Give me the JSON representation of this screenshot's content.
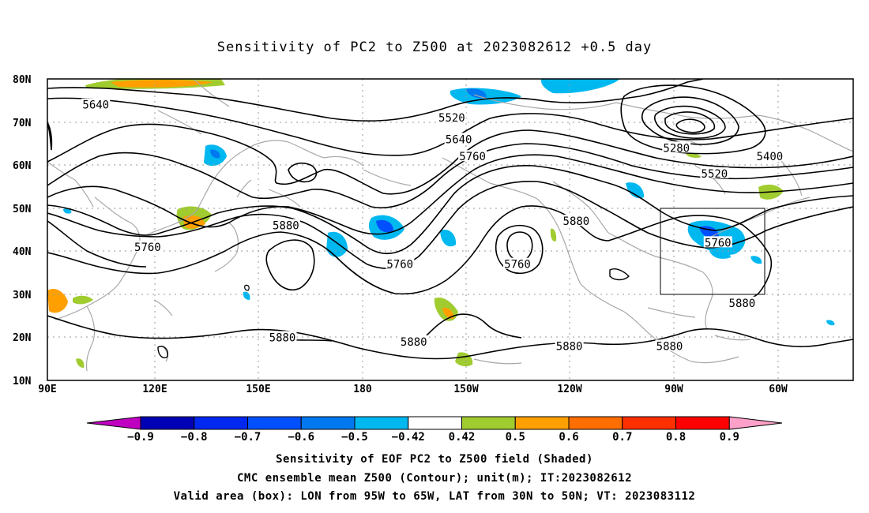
{
  "title": "Sensitivity of PC2 to Z500 at 2023082612 +0.5 day",
  "captions": [
    "Sensitivity of EOF PC2 to Z500 field (Shaded)",
    "CMC ensemble mean Z500 (Contour); unit(m); IT:2023082612",
    "Valid area (box): LON from 95W to 65W, LAT from 30N to 50N; VT: 2023083112"
  ],
  "axes": {
    "lon_ticks": [
      "90E",
      "120E",
      "150E",
      "180",
      "150W",
      "120W",
      "90W",
      "60W"
    ],
    "lat_ticks": [
      "80N",
      "70N",
      "60N",
      "50N",
      "40N",
      "30N",
      "20N",
      "10N"
    ]
  },
  "contour_labels": [
    {
      "text": "5640",
      "lon": 104,
      "lat": 74
    },
    {
      "text": "5520",
      "lon": 207,
      "lat": 71
    },
    {
      "text": "5640",
      "lon": 209,
      "lat": 66
    },
    {
      "text": "5760",
      "lon": 213,
      "lat": 62
    },
    {
      "text": "5280",
      "lon": 272,
      "lat": 64
    },
    {
      "text": "5400",
      "lon": 299,
      "lat": 62
    },
    {
      "text": "5520",
      "lon": 283,
      "lat": 58
    },
    {
      "text": "5880",
      "lon": 243,
      "lat": 47
    },
    {
      "text": "5760",
      "lon": 119,
      "lat": 41
    },
    {
      "text": "5880",
      "lon": 159,
      "lat": 46
    },
    {
      "text": "5760",
      "lon": 192,
      "lat": 37
    },
    {
      "text": "5760",
      "lon": 226,
      "lat": 37
    },
    {
      "text": "5760",
      "lon": 284,
      "lat": 42
    },
    {
      "text": "5880",
      "lon": 291,
      "lat": 28
    },
    {
      "text": "5880",
      "lon": 158,
      "lat": 20
    },
    {
      "text": "5880",
      "lon": 196,
      "lat": 19
    },
    {
      "text": "5880",
      "lon": 241,
      "lat": 18
    },
    {
      "text": "5880",
      "lon": 270,
      "lat": 18
    }
  ],
  "colorbar": {
    "labels": [
      "-0.9",
      "-0.8",
      "-0.7",
      "-0.6",
      "-0.5",
      "-0.42",
      "0.42",
      "0.5",
      "0.6",
      "0.7",
      "0.8",
      "0.9"
    ],
    "colors": [
      "#c000c0",
      "#0000b4",
      "#0028f0",
      "#0050ff",
      "#0078f0",
      "#00b8f0",
      "#ffffff",
      "#a0cc30",
      "#ffa000",
      "#ff6e00",
      "#ff3000",
      "#ff0000",
      "#ffa0c8"
    ]
  },
  "valid_box": {
    "lon_min": 265,
    "lon_max": 295,
    "lat_min": 30,
    "lat_max": 50
  }
}
